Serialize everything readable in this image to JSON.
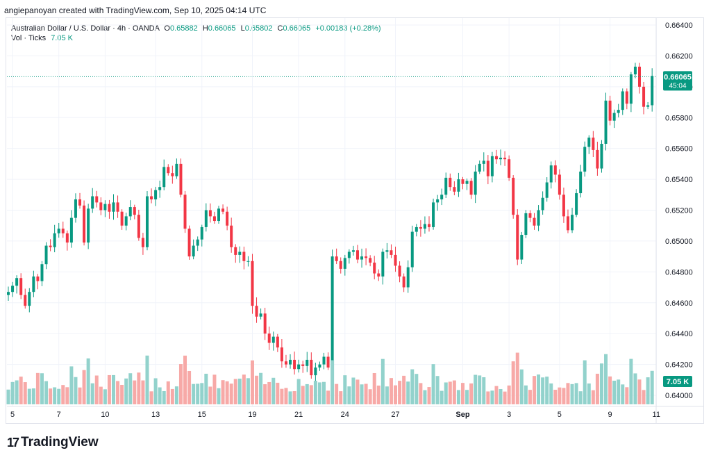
{
  "header": {
    "attribution": "angiepanoyan created with TradingView.com, Sep 10, 2025 04:14 UTC"
  },
  "legend": {
    "symbol": "Australian Dollar / U.S. Dollar · 4h · OANDA",
    "o_label": "O",
    "o": "0.65882",
    "h_label": "H",
    "h": "0.66065",
    "l_label": "L",
    "l": "0.65802",
    "c_label": "C",
    "c": "0.66065",
    "change": "+0.00183 (+0.28%)",
    "vol_label": "Vol · Ticks",
    "vol_value": "7.05 K"
  },
  "brand": {
    "logo_text": "TradingView",
    "logo_mark": "17"
  },
  "colors": {
    "up": "#089981",
    "down": "#f23645",
    "vol_up": "#92d2cc",
    "vol_down": "#f7a9a7",
    "grid": "#f0f3fa",
    "text": "#131722"
  },
  "chart_data": {
    "type": "candlestick",
    "title": "Australian Dollar / U.S. Dollar · 4h · OANDA",
    "ylim": [
      0.6395,
      0.6645
    ],
    "y_ticks": [
      "0.66400",
      "0.66200",
      "0.66000",
      "0.65800",
      "0.65600",
      "0.65400",
      "0.65200",
      "0.65000",
      "0.64800",
      "0.64600",
      "0.64400",
      "0.64200",
      "0.64000"
    ],
    "x_ticks": [
      {
        "label": "5",
        "index": 1
      },
      {
        "label": "7",
        "index": 12
      },
      {
        "label": "10",
        "index": 23
      },
      {
        "label": "13",
        "index": 35
      },
      {
        "label": "15",
        "index": 46
      },
      {
        "label": "19",
        "index": 58
      },
      {
        "label": "21",
        "index": 69
      },
      {
        "label": "24",
        "index": 80
      },
      {
        "label": "27",
        "index": 92
      },
      {
        "label": "Sep",
        "index": 108,
        "bold": true
      },
      {
        "label": "3",
        "index": 119
      },
      {
        "label": "5",
        "index": 131
      },
      {
        "label": "9",
        "index": 143
      },
      {
        "label": "11",
        "index": 154
      }
    ],
    "last_price": "0.66065",
    "countdown": "45:04",
    "last_volume": "7.05 K",
    "closes": [
      0.6467,
      0.6471,
      0.6476,
      0.6465,
      0.6458,
      0.6467,
      0.6477,
      0.6474,
      0.6485,
      0.6497,
      0.6496,
      0.6505,
      0.6508,
      0.6505,
      0.6499,
      0.6515,
      0.6527,
      0.6523,
      0.6499,
      0.6521,
      0.6529,
      0.6525,
      0.652,
      0.6524,
      0.6519,
      0.6525,
      0.6519,
      0.651,
      0.6516,
      0.6522,
      0.6517,
      0.6502,
      0.6496,
      0.6529,
      0.6527,
      0.6533,
      0.6535,
      0.6548,
      0.6544,
      0.6542,
      0.655,
      0.653,
      0.6508,
      0.649,
      0.6497,
      0.6501,
      0.6509,
      0.652,
      0.6516,
      0.6513,
      0.6521,
      0.6519,
      0.651,
      0.6496,
      0.6491,
      0.6493,
      0.6487,
      0.6487,
      0.6458,
      0.6451,
      0.6453,
      0.644,
      0.6434,
      0.6438,
      0.6431,
      0.6422,
      0.642,
      0.6423,
      0.6417,
      0.642,
      0.6419,
      0.6423,
      0.6413,
      0.6418,
      0.642,
      0.6425,
      0.6418,
      0.649,
      0.6487,
      0.6482,
      0.6489,
      0.6493,
      0.6494,
      0.6488,
      0.649,
      0.6489,
      0.6486,
      0.6479,
      0.6477,
      0.6493,
      0.6494,
      0.6491,
      0.6484,
      0.6477,
      0.647,
      0.6483,
      0.6506,
      0.6509,
      0.6508,
      0.6511,
      0.6509,
      0.6525,
      0.6527,
      0.653,
      0.6541,
      0.6535,
      0.6532,
      0.654,
      0.6537,
      0.6539,
      0.653,
      0.6545,
      0.655,
      0.6552,
      0.6542,
      0.6555,
      0.6553,
      0.6554,
      0.6553,
      0.6541,
      0.6517,
      0.6488,
      0.6504,
      0.6518,
      0.6515,
      0.651,
      0.652,
      0.6528,
      0.6538,
      0.6549,
      0.6543,
      0.653,
      0.6516,
      0.6507,
      0.6517,
      0.6531,
      0.6545,
      0.6561,
      0.6567,
      0.6559,
      0.6547,
      0.6563,
      0.6591,
      0.6578,
      0.6583,
      0.6585,
      0.6597,
      0.6589,
      0.6608,
      0.6613,
      0.66,
      0.6587,
      0.6588,
      0.6607
    ],
    "volume_ticks": [
      {
        "label": "7.05 K",
        "value": 7050
      }
    ]
  }
}
